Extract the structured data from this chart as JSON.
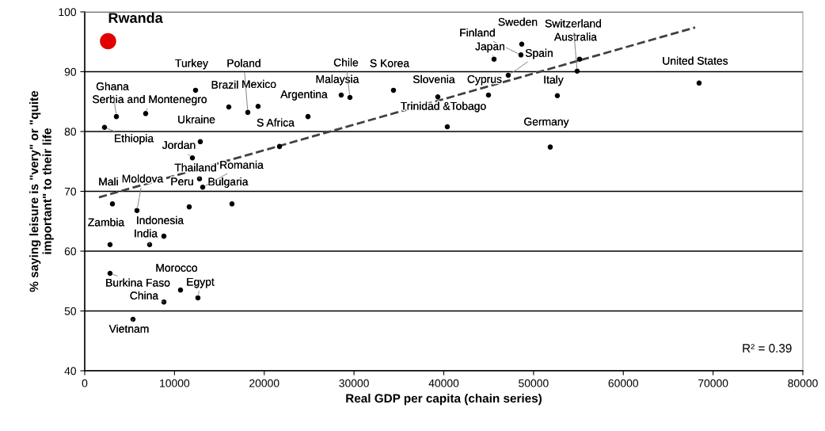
{
  "chart_data": {
    "type": "scatter",
    "xlabel": "Real GDP per capita (chain series)",
    "ylabel": "% saying leisure is \"very\" or \"quite\nimportant\" to their life",
    "xlim": [
      0,
      80000
    ],
    "ylim": [
      40,
      100
    ],
    "xticks": [
      0,
      10000,
      20000,
      30000,
      40000,
      50000,
      60000,
      70000,
      80000
    ],
    "yticks": [
      40,
      50,
      60,
      70,
      80,
      90,
      100
    ],
    "grid": "y",
    "legend": false,
    "marker": "circle",
    "series": [
      {
        "color": "#000000",
        "x": [
          3528,
          2205,
          6791,
          12348,
          16052,
          18169,
          19316,
          24872,
          12877,
          11995,
          12789,
          13142,
          21697,
          3087,
          5821,
          11642,
          16405,
          8820,
          2822,
          7232,
          2822,
          10672,
          12612,
          8820,
          5380,
          28576,
          29546,
          34397,
          39336,
          40395,
          44981,
          47186,
          45598,
          48597,
          48685,
          52655,
          51861,
          55124,
          54859,
          68443
        ],
        "values": [
          82.5,
          80.7,
          83.0,
          86.9,
          84.1,
          83.2,
          84.2,
          82.5,
          78.3,
          75.6,
          72.1,
          70.7,
          77.5,
          67.9,
          66.8,
          67.4,
          67.9,
          62.5,
          61.1,
          61.1,
          56.3,
          53.5,
          52.2,
          51.5,
          48.6,
          86.1,
          85.7,
          86.9,
          85.8,
          80.8,
          86.1,
          89.4,
          92.1,
          92.8,
          94.6,
          86.0,
          77.4,
          92.1,
          90.1,
          88.1
        ]
      },
      {
        "type": "bubble",
        "name": "Rwanda",
        "color": "#e00000",
        "x": [
          2600
        ],
        "values": [
          95.1
        ],
        "sizes": [
          1
        ]
      },
      {
        "type": "line",
        "color": "#404040",
        "line_style": "dashed",
        "marker": "none",
        "x": [
          1588,
          68001
        ],
        "values": [
          69.0,
          97.4
        ]
      }
    ],
    "annotations": [
      {
        "text": "Sweden",
        "x": 48685,
        "y": 94.6
      },
      {
        "text": "Finland",
        "x": 48597,
        "y": 92.8
      },
      {
        "text": "Japan",
        "x": 45598,
        "y": 92.1
      },
      {
        "text": "Spain",
        "x": 47186,
        "y": 89.4
      },
      {
        "text": "Australia",
        "x": 55124,
        "y": 92.1
      },
      {
        "text": "Switzerland",
        "x": 54859,
        "y": 90.1
      },
      {
        "text": "United States",
        "x": 68443,
        "y": 88.1
      },
      {
        "text": "Italy",
        "x": 52655,
        "y": 86.0
      },
      {
        "text": "Cyprus",
        "x": 44981,
        "y": 86.1
      },
      {
        "text": "Slovenia",
        "x": 39336,
        "y": 85.8
      },
      {
        "text": "Trinidad &Tobago",
        "x": 40395,
        "y": 80.8
      },
      {
        "text": "Germany",
        "x": 51861,
        "y": 77.4
      },
      {
        "text": "S Korea",
        "x": 34397,
        "y": 86.9
      },
      {
        "text": "Malaysia",
        "x": 28576,
        "y": 86.1
      },
      {
        "text": "Chile",
        "x": 29546,
        "y": 85.7
      },
      {
        "text": "Turkey",
        "x": 12348,
        "y": 86.9
      },
      {
        "text": "Serbia and Montenegro",
        "x": 6791,
        "y": 83.0
      },
      {
        "text": "Ghana",
        "x": 3528,
        "y": 82.5
      },
      {
        "text": "Ethiopia",
        "x": 2205,
        "y": 80.7
      },
      {
        "text": "Brazil",
        "x": 16052,
        "y": 84.1
      },
      {
        "text": "Mexico",
        "x": 19316,
        "y": 84.2
      },
      {
        "text": "Poland",
        "x": 18169,
        "y": 83.2
      },
      {
        "text": "Argentina",
        "x": 24872,
        "y": 82.5
      },
      {
        "text": "Ukraine",
        "x": 12877,
        "y": 78.3
      },
      {
        "text": "S Africa",
        "x": 21697,
        "y": 77.5
      },
      {
        "text": "Jordan",
        "x": 11995,
        "y": 75.6
      },
      {
        "text": "Thailand",
        "x": 12789,
        "y": 72.1
      },
      {
        "text": "Romania",
        "x": 13142,
        "y": 70.7
      },
      {
        "text": "Mali",
        "x": 3087,
        "y": 67.9
      },
      {
        "text": "Moldova",
        "x": 5821,
        "y": 66.8
      },
      {
        "text": "Peru",
        "x": 11642,
        "y": 67.4
      },
      {
        "text": "Bulgaria",
        "x": 16405,
        "y": 67.9
      },
      {
        "text": "Indonesia",
        "x": 8820,
        "y": 62.5
      },
      {
        "text": "Zambia",
        "x": 2822,
        "y": 61.1
      },
      {
        "text": "India",
        "x": 7232,
        "y": 61.1
      },
      {
        "text": "Burkina Faso",
        "x": 2822,
        "y": 56.3
      },
      {
        "text": "Morocco",
        "x": 10672,
        "y": 53.5
      },
      {
        "text": "China",
        "x": 8820,
        "y": 51.5
      },
      {
        "text": "Egypt",
        "x": 12612,
        "y": 52.2
      },
      {
        "text": "Vietnam",
        "x": 5380,
        "y": 48.6
      },
      "R² = 0.39"
    ]
  }
}
